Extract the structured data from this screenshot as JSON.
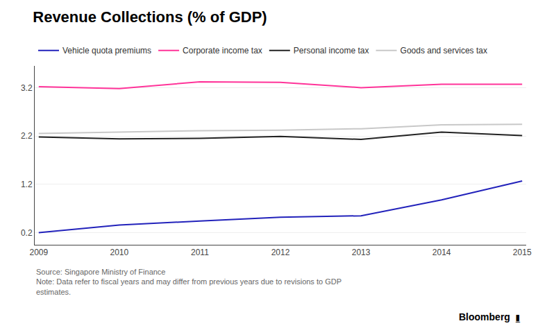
{
  "chart_data": {
    "type": "line",
    "title": "Revenue Collections (% of GDP)",
    "x": [
      2009,
      2010,
      2011,
      2012,
      2013,
      2014,
      2015
    ],
    "series": [
      {
        "name": "Vehicle quota premiums",
        "color": "#2222bb",
        "values": [
          0.2,
          0.36,
          0.44,
          0.52,
          0.55,
          0.88,
          1.27
        ]
      },
      {
        "name": "Corporate income tax",
        "color": "#ff3399",
        "values": [
          3.22,
          3.18,
          3.32,
          3.31,
          3.2,
          3.27,
          3.27
        ]
      },
      {
        "name": "Personal income tax",
        "color": "#222222",
        "values": [
          2.18,
          2.14,
          2.15,
          2.19,
          2.13,
          2.28,
          2.21
        ]
      },
      {
        "name": "Goods and services tax",
        "color": "#c8c8c8",
        "values": [
          2.25,
          2.28,
          2.31,
          2.32,
          2.35,
          2.43,
          2.44
        ]
      }
    ],
    "xlim": [
      2008.95,
      2015.05
    ],
    "xticks": [
      2009,
      2010,
      2011,
      2012,
      2013,
      2014,
      2015
    ],
    "ylim": [
      -0.05,
      3.65
    ],
    "yticks": [
      0.2,
      1.2,
      2.2,
      3.2
    ],
    "grid": "y",
    "legend": "upper left",
    "annotations": [
      "Source: Singapore Ministry of Finance\nNote: Data refer to fiscal years and may differ from previous years due to revisions to GDP\nestimates.",
      "Bloomberg",
      "▮̲"
    ]
  }
}
